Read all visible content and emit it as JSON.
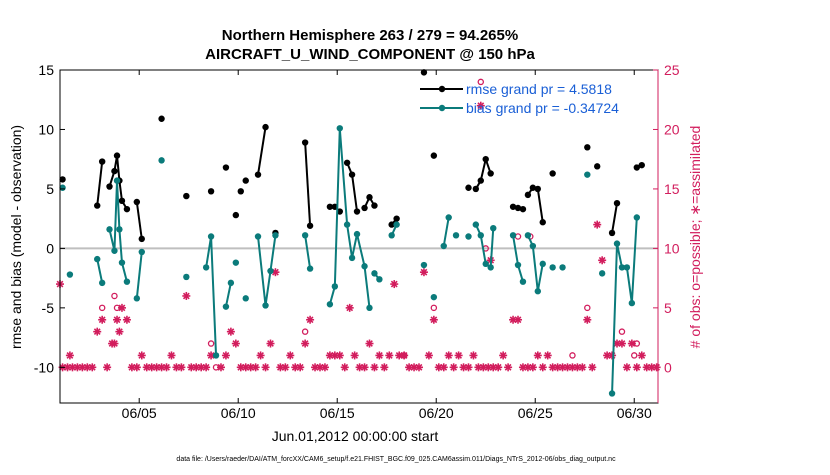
{
  "chart_data": {
    "type": "line",
    "title_line1": "Northern Hemisphere 263 / 279 = 94.265%",
    "title_line2": "AIRCRAFT_U_WIND_COMPONENT @ 150 hPa",
    "xlabel": "Jun.01,2012 00:00:00 start",
    "ylabel_left": "rmse and bias (model - observation)",
    "ylabel_right": "# of obs: o=possible; ∗=assimilated",
    "footer": "data file: /Users/raeder/DAI/ATM_forcXX/CAM6_setup/f.e21.FHIST_BGC.f09_025.CAM6assim.011/Diags_NTrS_2012-06/obs_diag_output.nc",
    "xlim": [
      1.0,
      31.2
    ],
    "ylim_left": [
      -13,
      15
    ],
    "ylim_right": [
      -3,
      25
    ],
    "x_ticks": [
      {
        "v": 5,
        "label": "06/05"
      },
      {
        "v": 10,
        "label": "06/10"
      },
      {
        "v": 15,
        "label": "06/15"
      },
      {
        "v": 20,
        "label": "06/20"
      },
      {
        "v": 25,
        "label": "06/25"
      },
      {
        "v": 30,
        "label": "06/30"
      }
    ],
    "y_ticks_left": [
      "-10",
      "-5",
      "0",
      "5",
      "10",
      "15"
    ],
    "y_ticks_right": [
      "0",
      "5",
      "10",
      "15",
      "20",
      "25"
    ],
    "colors": {
      "rmse": "#000000",
      "bias": "#0b7b7b",
      "obs": "#d21d5d",
      "zero": "#bfbfbf",
      "axis_right": "#d21d5d",
      "legend_text": "#1a5fd6"
    },
    "legend": [
      {
        "name": "rmse grand pr = 4.5818",
        "series": "rmse"
      },
      {
        "name": "bias grand pr = -0.34724",
        "series": "bias"
      }
    ],
    "series": [
      {
        "name": "rmse",
        "segments": [
          [
            [
              1.13,
              5.8
            ]
          ],
          [
            [
              2.88,
              3.6
            ],
            [
              3.13,
              7.3
            ]
          ],
          [
            [
              3.5,
              5.2
            ],
            [
              3.75,
              6.5
            ],
            [
              3.88,
              7.8
            ],
            [
              4.0,
              5.7
            ],
            [
              4.13,
              4.0
            ],
            [
              4.38,
              3.3
            ]
          ],
          [
            [
              4.88,
              3.9
            ],
            [
              5.13,
              0.8
            ]
          ],
          [
            [
              6.13,
              10.9
            ]
          ],
          [
            [
              7.38,
              4.4
            ]
          ],
          [
            [
              8.63,
              4.8
            ]
          ],
          [
            [
              9.38,
              6.8
            ]
          ],
          [
            [
              9.88,
              2.8
            ]
          ],
          [
            [
              10.13,
              4.8
            ]
          ],
          [
            [
              10.38,
              5.7
            ]
          ],
          [
            [
              11.0,
              6.2
            ],
            [
              11.38,
              10.2
            ]
          ],
          [
            [
              11.88,
              1.3
            ]
          ],
          [
            [
              13.38,
              8.9
            ],
            [
              13.63,
              1.9
            ]
          ],
          [
            [
              14.63,
              3.5
            ],
            [
              14.88,
              3.5
            ],
            [
              15.13,
              3.1
            ]
          ],
          [
            [
              15.5,
              7.2
            ],
            [
              15.75,
              6.2
            ],
            [
              16.0,
              3.1
            ]
          ],
          [
            [
              16.38,
              3.4
            ],
            [
              16.63,
              4.3
            ],
            [
              16.88,
              3.6
            ]
          ],
          [
            [
              17.75,
              2.0
            ],
            [
              18.0,
              2.5
            ]
          ],
          [
            [
              19.38,
              14.8
            ]
          ],
          [
            [
              19.88,
              7.8
            ]
          ],
          [
            [
              21.63,
              5.1
            ]
          ],
          [
            [
              22.0,
              5.0
            ],
            [
              22.25,
              5.7
            ],
            [
              22.5,
              7.5
            ],
            [
              22.75,
              6.3
            ]
          ],
          [
            [
              23.88,
              3.5
            ],
            [
              24.13,
              3.4
            ],
            [
              24.38,
              3.3
            ]
          ],
          [
            [
              24.63,
              4.5
            ],
            [
              24.88,
              5.1
            ],
            [
              25.13,
              5.0
            ],
            [
              25.38,
              2.2
            ]
          ],
          [
            [
              25.88,
              6.3
            ]
          ],
          [
            [
              27.63,
              8.5
            ]
          ],
          [
            [
              28.13,
              6.9
            ]
          ],
          [
            [
              28.88,
              1.3
            ],
            [
              29.13,
              3.8
            ]
          ],
          [
            [
              30.13,
              6.8
            ],
            [
              30.38,
              7.0
            ]
          ]
        ]
      },
      {
        "name": "bias",
        "segments": [
          [
            [
              1.13,
              5.1
            ]
          ],
          [
            [
              1.5,
              -2.2
            ]
          ],
          [
            [
              2.88,
              -0.9
            ],
            [
              3.13,
              -2.9
            ]
          ],
          [
            [
              3.5,
              1.6
            ],
            [
              3.75,
              -0.2
            ],
            [
              3.88,
              5.7
            ],
            [
              4.0,
              1.6
            ],
            [
              4.13,
              -1.2
            ],
            [
              4.38,
              -2.8
            ]
          ],
          [
            [
              4.88,
              -4.2
            ],
            [
              5.13,
              -0.3
            ]
          ],
          [
            [
              6.13,
              7.4
            ]
          ],
          [
            [
              7.38,
              -2.4
            ]
          ],
          [
            [
              8.38,
              -1.6
            ],
            [
              8.63,
              1.0
            ],
            [
              8.88,
              -9.0
            ]
          ],
          [
            [
              9.38,
              -4.9
            ],
            [
              9.63,
              -2.9
            ]
          ],
          [
            [
              9.88,
              -1.2
            ]
          ],
          [
            [
              10.38,
              -4.2
            ]
          ],
          [
            [
              11.0,
              1.0
            ],
            [
              11.38,
              -4.8
            ],
            [
              11.63,
              -1.9
            ],
            [
              11.88,
              1.1
            ]
          ],
          [
            [
              13.38,
              1.1
            ],
            [
              13.63,
              -1.7
            ]
          ],
          [
            [
              14.63,
              -4.7
            ],
            [
              14.88,
              -3.2
            ],
            [
              15.13,
              10.1
            ],
            [
              15.5,
              2.0
            ],
            [
              15.75,
              -0.8
            ],
            [
              16.0,
              1.2
            ],
            [
              16.38,
              -1.5
            ],
            [
              16.63,
              -5.0
            ]
          ],
          [
            [
              16.88,
              -2.1
            ],
            [
              17.13,
              -2.6
            ]
          ],
          [
            [
              17.75,
              1.1
            ],
            [
              18.0,
              2.0
            ]
          ],
          [
            [
              19.38,
              -1.4
            ]
          ],
          [
            [
              19.88,
              -4.1
            ]
          ],
          [
            [
              20.38,
              0.2
            ],
            [
              20.63,
              2.6
            ]
          ],
          [
            [
              21.0,
              1.1
            ]
          ],
          [
            [
              21.63,
              1.0
            ]
          ],
          [
            [
              22.0,
              2.0
            ],
            [
              22.25,
              1.1
            ],
            [
              22.5,
              -1.3
            ],
            [
              22.75,
              -1.6
            ],
            [
              22.88,
              1.7
            ]
          ],
          [
            [
              23.88,
              1.1
            ],
            [
              24.13,
              -1.4
            ],
            [
              24.38,
              -2.8
            ]
          ],
          [
            [
              24.63,
              1.1
            ],
            [
              24.88,
              0.2
            ],
            [
              25.13,
              -3.6
            ],
            [
              25.38,
              -1.3
            ]
          ],
          [
            [
              25.88,
              -1.6
            ]
          ],
          [
            [
              26.38,
              -1.6
            ]
          ],
          [
            [
              27.63,
              6.2
            ]
          ],
          [
            [
              28.38,
              -2.1
            ]
          ],
          [
            [
              28.88,
              -12.2
            ],
            [
              29.13,
              0.4
            ],
            [
              29.38,
              -1.6
            ],
            [
              29.63,
              -1.6
            ],
            [
              29.88,
              -4.6
            ],
            [
              30.13,
              2.6
            ]
          ]
        ]
      }
    ],
    "obs_possible": [
      [
        3.13,
        5
      ],
      [
        3.75,
        6
      ],
      [
        3.88,
        5
      ],
      [
        8.63,
        2
      ],
      [
        8.88,
        0
      ],
      [
        13.38,
        3
      ],
      [
        18.38,
        1
      ],
      [
        19.88,
        5
      ],
      [
        22.25,
        24
      ],
      [
        22.5,
        10
      ],
      [
        24.13,
        11
      ],
      [
        24.75,
        11
      ],
      [
        26.88,
        1
      ],
      [
        27.63,
        5
      ],
      [
        29.38,
        3
      ],
      [
        30.0,
        1
      ],
      [
        30.13,
        2
      ]
    ],
    "obs_assimilated": [
      [
        1.0,
        7
      ],
      [
        1.13,
        0
      ],
      [
        1.38,
        0
      ],
      [
        1.5,
        1
      ],
      [
        1.63,
        0
      ],
      [
        1.88,
        0
      ],
      [
        2.13,
        0
      ],
      [
        2.38,
        0
      ],
      [
        2.63,
        0
      ],
      [
        2.88,
        3
      ],
      [
        3.13,
        4
      ],
      [
        3.38,
        0
      ],
      [
        3.63,
        2
      ],
      [
        3.75,
        2
      ],
      [
        3.88,
        4
      ],
      [
        4.0,
        3
      ],
      [
        4.13,
        5
      ],
      [
        4.38,
        4
      ],
      [
        4.63,
        0
      ],
      [
        4.88,
        0
      ],
      [
        5.13,
        1
      ],
      [
        5.38,
        0
      ],
      [
        5.63,
        0
      ],
      [
        5.88,
        0
      ],
      [
        6.13,
        0
      ],
      [
        6.38,
        0
      ],
      [
        6.63,
        1
      ],
      [
        6.88,
        0
      ],
      [
        7.13,
        0
      ],
      [
        7.38,
        6
      ],
      [
        7.63,
        0
      ],
      [
        7.88,
        0
      ],
      [
        8.13,
        0
      ],
      [
        8.38,
        0
      ],
      [
        8.63,
        1
      ],
      [
        9.13,
        0
      ],
      [
        9.38,
        1
      ],
      [
        9.63,
        3
      ],
      [
        9.88,
        2
      ],
      [
        10.13,
        0
      ],
      [
        10.38,
        0
      ],
      [
        10.63,
        0
      ],
      [
        10.88,
        0
      ],
      [
        11.13,
        1
      ],
      [
        11.38,
        0
      ],
      [
        11.63,
        2
      ],
      [
        11.88,
        8
      ],
      [
        12.13,
        0
      ],
      [
        12.38,
        0
      ],
      [
        12.63,
        1
      ],
      [
        12.88,
        0
      ],
      [
        13.13,
        0
      ],
      [
        13.38,
        2
      ],
      [
        13.63,
        4
      ],
      [
        13.88,
        0
      ],
      [
        14.13,
        0
      ],
      [
        14.38,
        0
      ],
      [
        14.63,
        1
      ],
      [
        14.88,
        1
      ],
      [
        15.13,
        1
      ],
      [
        15.38,
        0
      ],
      [
        15.63,
        5
      ],
      [
        15.88,
        1
      ],
      [
        16.13,
        0
      ],
      [
        16.38,
        0
      ],
      [
        16.63,
        2
      ],
      [
        16.88,
        0
      ],
      [
        17.13,
        1
      ],
      [
        17.38,
        0
      ],
      [
        17.63,
        1
      ],
      [
        17.88,
        7
      ],
      [
        18.13,
        1
      ],
      [
        18.38,
        1
      ],
      [
        18.63,
        0
      ],
      [
        18.88,
        0
      ],
      [
        19.13,
        0
      ],
      [
        19.38,
        8
      ],
      [
        19.63,
        1
      ],
      [
        19.88,
        4
      ],
      [
        20.13,
        0
      ],
      [
        20.38,
        0
      ],
      [
        20.63,
        1
      ],
      [
        20.88,
        0
      ],
      [
        21.13,
        1
      ],
      [
        21.38,
        0
      ],
      [
        21.63,
        0
      ],
      [
        21.88,
        1
      ],
      [
        22.13,
        0
      ],
      [
        22.25,
        22
      ],
      [
        22.38,
        0
      ],
      [
        22.63,
        0
      ],
      [
        22.75,
        9
      ],
      [
        22.88,
        0
      ],
      [
        23.13,
        0
      ],
      [
        23.38,
        1
      ],
      [
        23.63,
        0
      ],
      [
        23.88,
        4
      ],
      [
        24.13,
        4
      ],
      [
        24.38,
        0
      ],
      [
        24.63,
        0
      ],
      [
        24.88,
        0
      ],
      [
        25.13,
        1
      ],
      [
        25.38,
        0
      ],
      [
        25.63,
        1
      ],
      [
        25.88,
        0
      ],
      [
        26.13,
        0
      ],
      [
        26.38,
        0
      ],
      [
        26.63,
        0
      ],
      [
        26.88,
        0
      ],
      [
        27.13,
        0
      ],
      [
        27.38,
        0
      ],
      [
        27.63,
        4
      ],
      [
        27.88,
        0
      ],
      [
        28.13,
        12
      ],
      [
        28.38,
        9
      ],
      [
        28.63,
        1
      ],
      [
        28.88,
        1
      ],
      [
        29.13,
        2
      ],
      [
        29.38,
        2
      ],
      [
        29.63,
        0
      ],
      [
        29.88,
        2
      ],
      [
        30.13,
        0
      ],
      [
        30.38,
        1
      ],
      [
        30.63,
        0
      ],
      [
        30.88,
        0
      ],
      [
        31.13,
        0
      ]
    ]
  }
}
